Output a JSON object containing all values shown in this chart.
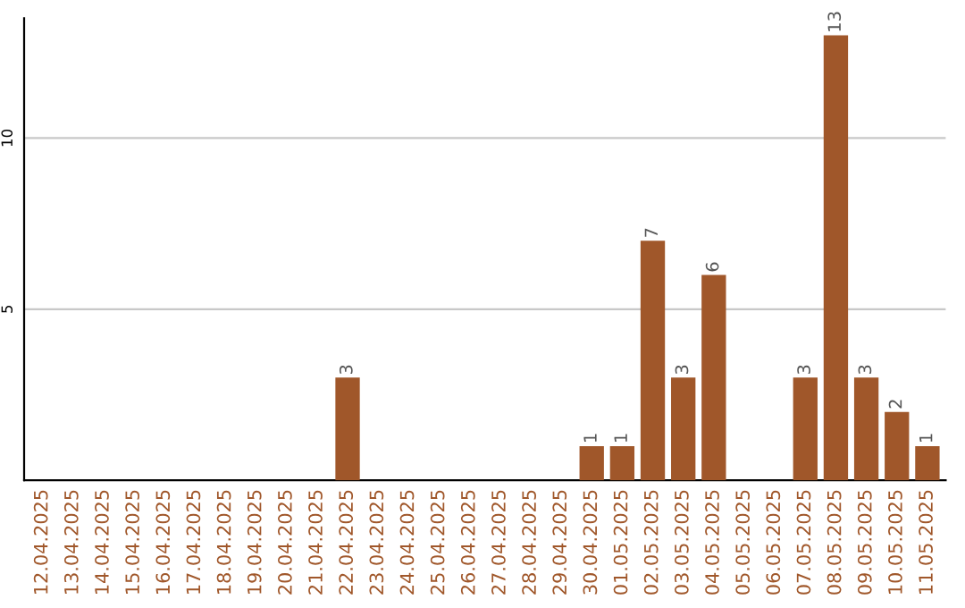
{
  "chart_data": {
    "type": "bar",
    "categories": [
      "12.04.2025",
      "13.04.2025",
      "14.04.2025",
      "15.04.2025",
      "16.04.2025",
      "17.04.2025",
      "18.04.2025",
      "19.04.2025",
      "20.04.2025",
      "21.04.2025",
      "22.04.2025",
      "23.04.2025",
      "24.04.2025",
      "25.04.2025",
      "26.04.2025",
      "27.04.2025",
      "28.04.2025",
      "29.04.2025",
      "30.04.2025",
      "01.05.2025",
      "02.05.2025",
      "03.05.2025",
      "04.05.2025",
      "05.05.2025",
      "06.05.2025",
      "07.05.2025",
      "08.05.2025",
      "09.05.2025",
      "10.05.2025",
      "11.05.2025"
    ],
    "values": [
      0,
      0,
      0,
      0,
      0,
      0,
      0,
      0,
      0,
      0,
      3,
      0,
      0,
      0,
      0,
      0,
      0,
      0,
      1,
      1,
      7,
      3,
      6,
      0,
      0,
      3,
      13,
      3,
      2,
      1
    ],
    "value_labels": [
      null,
      null,
      null,
      null,
      null,
      null,
      null,
      null,
      null,
      null,
      "3",
      null,
      null,
      null,
      null,
      null,
      null,
      null,
      "1",
      "1",
      "7",
      "3",
      "6",
      null,
      null,
      "3",
      "13",
      "3",
      "2",
      "1"
    ],
    "color": "#a0572a",
    "ylim": [
      0,
      13.5
    ],
    "yticks": [
      5,
      10
    ],
    "grid": "y",
    "legend": false
  }
}
